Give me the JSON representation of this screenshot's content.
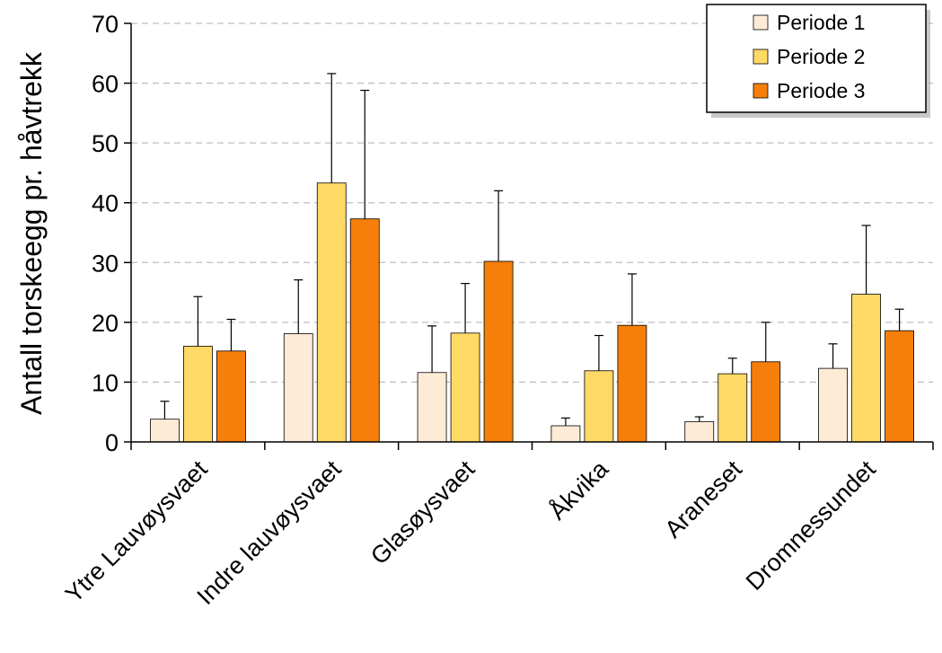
{
  "chart_data": {
    "type": "bar",
    "ylabel": "Antall torskeegg pr. håvtrekk",
    "xlabel": "",
    "ylim": [
      0,
      70
    ],
    "yticks": [
      0,
      10,
      20,
      30,
      40,
      50,
      60,
      70
    ],
    "grid": "horizontal-dashed",
    "legend_position": "top-right",
    "categories": [
      "Ytre Lauvøysvaet",
      "Indre lauvøysvaet",
      "Glasøysvaet",
      "Åkvika",
      "Araneset",
      "Dromnessundet"
    ],
    "series": [
      {
        "name": "Periode 1",
        "color": "#fdebd6",
        "values": [
          3.8,
          18.1,
          11.6,
          2.7,
          3.4,
          12.3
        ],
        "errors": [
          3.0,
          9.0,
          7.8,
          1.3,
          0.8,
          4.1
        ]
      },
      {
        "name": "Periode 2",
        "color": "#ffd966",
        "values": [
          16.0,
          43.3,
          18.2,
          11.9,
          11.4,
          24.7
        ],
        "errors": [
          8.3,
          18.3,
          8.3,
          5.9,
          2.6,
          11.5
        ]
      },
      {
        "name": "Periode 3",
        "color": "#f57f0a",
        "values": [
          15.2,
          37.3,
          30.2,
          19.5,
          13.4,
          18.6
        ],
        "errors": [
          5.3,
          21.5,
          11.8,
          8.6,
          6.6,
          3.6
        ]
      }
    ]
  }
}
